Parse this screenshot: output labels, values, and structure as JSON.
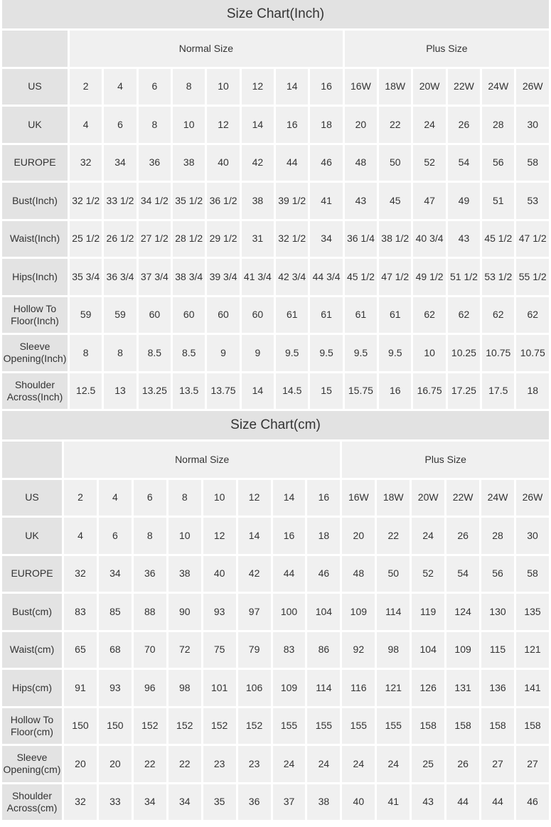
{
  "tables": [
    {
      "title": "Size Chart(Inch)",
      "groups": [
        {
          "label": "Normal Size",
          "span": 8
        },
        {
          "label": "Plus Size",
          "span": 6
        }
      ],
      "rows": [
        {
          "label": "US",
          "values": [
            "2",
            "4",
            "6",
            "8",
            "10",
            "12",
            "14",
            "16",
            "16W",
            "18W",
            "20W",
            "22W",
            "24W",
            "26W"
          ]
        },
        {
          "label": "UK",
          "values": [
            "4",
            "6",
            "8",
            "10",
            "12",
            "14",
            "16",
            "18",
            "20",
            "22",
            "24",
            "26",
            "28",
            "30"
          ]
        },
        {
          "label": "EUROPE",
          "values": [
            "32",
            "34",
            "36",
            "38",
            "40",
            "42",
            "44",
            "46",
            "48",
            "50",
            "52",
            "54",
            "56",
            "58"
          ]
        },
        {
          "label": "Bust(Inch)",
          "values": [
            "32 1/2",
            "33 1/2",
            "34 1/2",
            "35 1/2",
            "36 1/2",
            "38",
            "39 1/2",
            "41",
            "43",
            "45",
            "47",
            "49",
            "51",
            "53"
          ]
        },
        {
          "label": "Waist(Inch)",
          "values": [
            "25 1/2",
            "26 1/2",
            "27 1/2",
            "28 1/2",
            "29 1/2",
            "31",
            "32 1/2",
            "34",
            "36 1/4",
            "38 1/2",
            "40 3/4",
            "43",
            "45 1/2",
            "47 1/2"
          ]
        },
        {
          "label": "Hips(Inch)",
          "values": [
            "35 3/4",
            "36 3/4",
            "37 3/4",
            "38 3/4",
            "39 3/4",
            "41 3/4",
            "42 3/4",
            "44 3/4",
            "45 1/2",
            "47 1/2",
            "49 1/2",
            "51 1/2",
            "53 1/2",
            "55 1/2"
          ]
        },
        {
          "label": "Hollow To Floor(Inch)",
          "values": [
            "59",
            "59",
            "60",
            "60",
            "60",
            "60",
            "61",
            "61",
            "61",
            "61",
            "62",
            "62",
            "62",
            "62"
          ]
        },
        {
          "label": "Sleeve Opening(Inch)",
          "values": [
            "8",
            "8",
            "8.5",
            "8.5",
            "9",
            "9",
            "9.5",
            "9.5",
            "9.5",
            "9.5",
            "10",
            "10.25",
            "10.75",
            "10.75"
          ]
        },
        {
          "label": "Shoulder Across(Inch)",
          "values": [
            "12.5",
            "13",
            "13.25",
            "13.5",
            "13.75",
            "14",
            "14.5",
            "15",
            "15.75",
            "16",
            "16.75",
            "17.25",
            "17.5",
            "18"
          ]
        }
      ]
    },
    {
      "title": "Size Chart(cm)",
      "groups": [
        {
          "label": "Normal Size",
          "span": 8
        },
        {
          "label": "Plus Size",
          "span": 6
        }
      ],
      "rows": [
        {
          "label": "US",
          "values": [
            "2",
            "4",
            "6",
            "8",
            "10",
            "12",
            "14",
            "16",
            "16W",
            "18W",
            "20W",
            "22W",
            "24W",
            "26W"
          ]
        },
        {
          "label": "UK",
          "values": [
            "4",
            "6",
            "8",
            "10",
            "12",
            "14",
            "16",
            "18",
            "20",
            "22",
            "24",
            "26",
            "28",
            "30"
          ]
        },
        {
          "label": "EUROPE",
          "values": [
            "32",
            "34",
            "36",
            "38",
            "40",
            "42",
            "44",
            "46",
            "48",
            "50",
            "52",
            "54",
            "56",
            "58"
          ]
        },
        {
          "label": "Bust(cm)",
          "values": [
            "83",
            "85",
            "88",
            "90",
            "93",
            "97",
            "100",
            "104",
            "109",
            "114",
            "119",
            "124",
            "130",
            "135"
          ]
        },
        {
          "label": "Waist(cm)",
          "values": [
            "65",
            "68",
            "70",
            "72",
            "75",
            "79",
            "83",
            "86",
            "92",
            "98",
            "104",
            "109",
            "115",
            "121"
          ]
        },
        {
          "label": "Hips(cm)",
          "values": [
            "91",
            "93",
            "96",
            "98",
            "101",
            "106",
            "109",
            "114",
            "116",
            "121",
            "126",
            "131",
            "136",
            "141"
          ]
        },
        {
          "label": "Hollow To Floor(cm)",
          "values": [
            "150",
            "150",
            "152",
            "152",
            "152",
            "152",
            "155",
            "155",
            "155",
            "155",
            "158",
            "158",
            "158",
            "158"
          ]
        },
        {
          "label": "Sleeve Opening(cm)",
          "values": [
            "20",
            "20",
            "22",
            "22",
            "23",
            "23",
            "24",
            "24",
            "24",
            "24",
            "25",
            "26",
            "27",
            "27"
          ]
        },
        {
          "label": "Shoulder Across(cm)",
          "values": [
            "32",
            "33",
            "34",
            "34",
            "35",
            "36",
            "37",
            "38",
            "40",
            "41",
            "43",
            "44",
            "44",
            "46"
          ]
        }
      ]
    }
  ]
}
